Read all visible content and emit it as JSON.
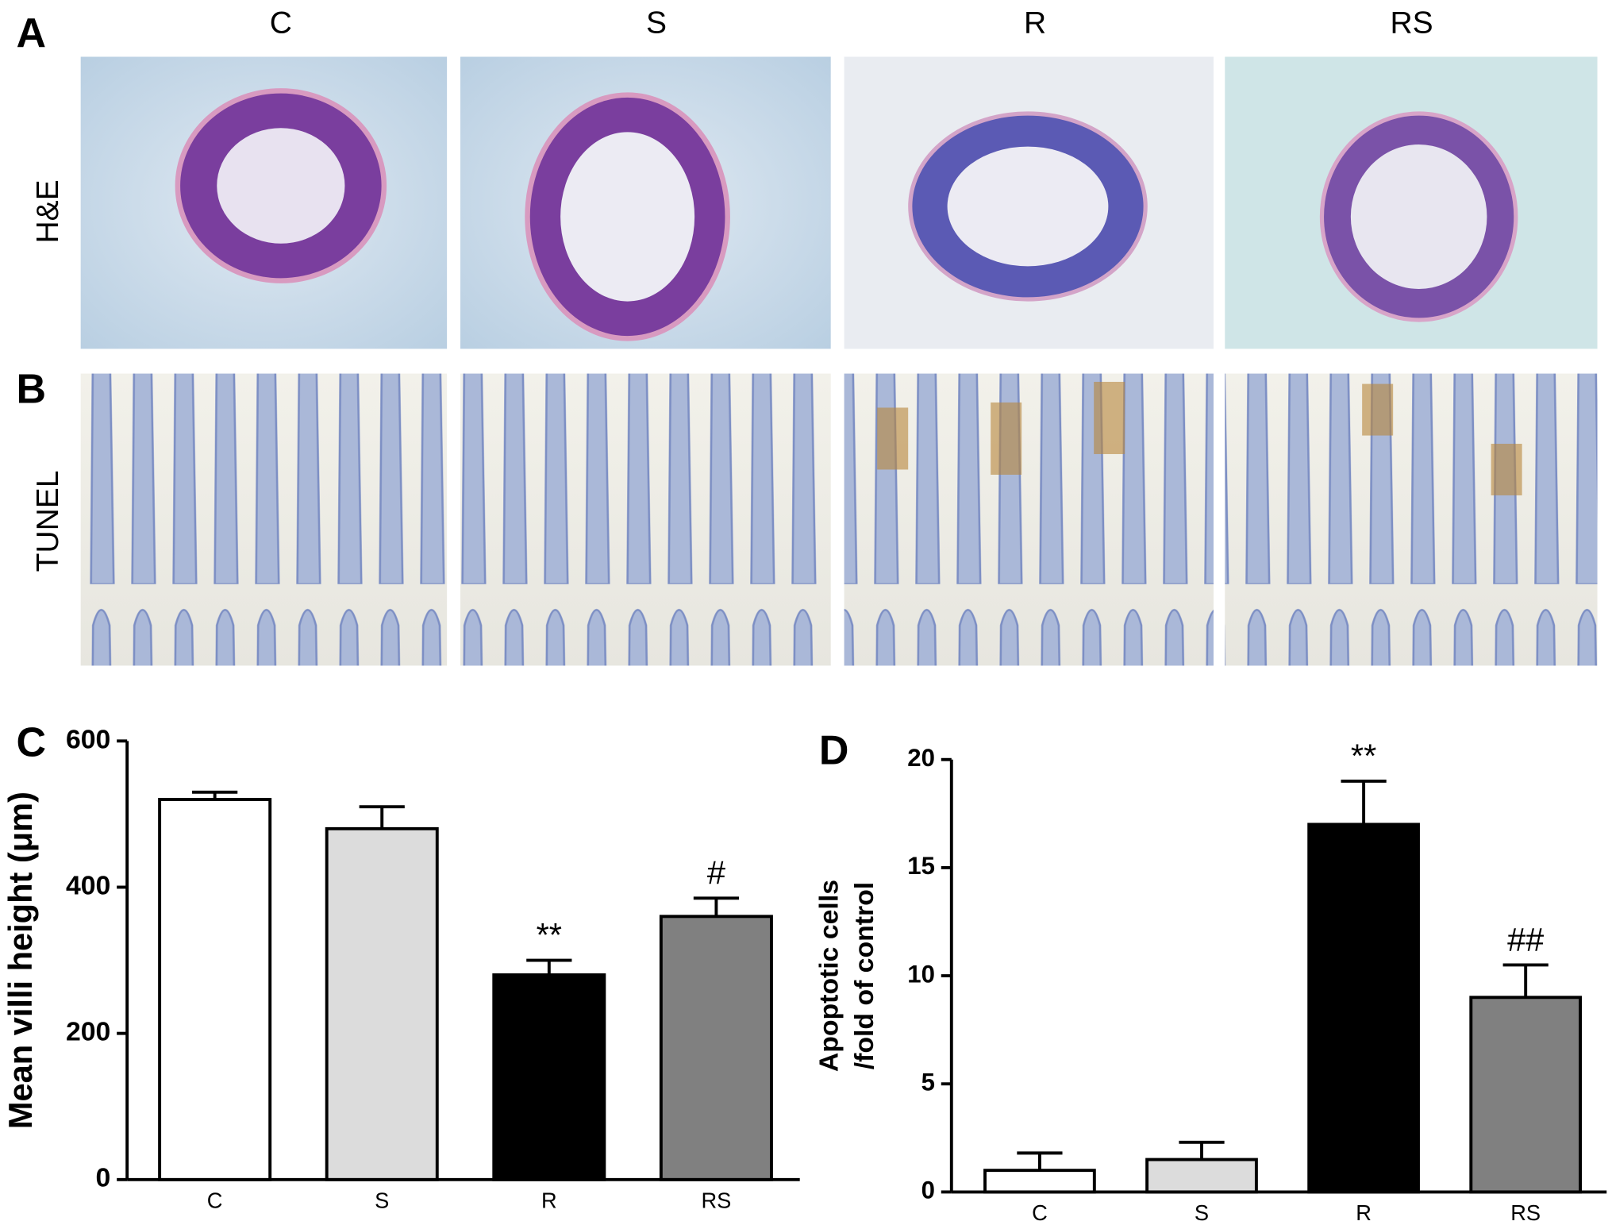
{
  "panels": {
    "letters": [
      "A",
      "B",
      "C",
      "D"
    ],
    "columns": [
      "C",
      "S",
      "R",
      "RS"
    ],
    "rows": [
      "H&E",
      "TUNEL"
    ]
  },
  "chart_data": [
    {
      "type": "bar",
      "ylabel": [
        "Mean villi height (μm)"
      ],
      "categories": [
        "C",
        "S",
        "R",
        "RS"
      ],
      "values": [
        520,
        480,
        280,
        360
      ],
      "errors": [
        10,
        30,
        20,
        25
      ],
      "annotations": [
        null,
        null,
        "**",
        "#"
      ],
      "colors": [
        "#ffffff",
        "#dcdcdc",
        "#000000",
        "#808080"
      ],
      "ylim": [
        0,
        600
      ],
      "yticks": [
        0,
        200,
        400,
        600
      ]
    },
    {
      "type": "bar",
      "ylabel": [
        "Apoptotic cells",
        "/fold of control"
      ],
      "categories": [
        "C",
        "S",
        "R",
        "RS"
      ],
      "values": [
        1,
        1.5,
        17,
        9
      ],
      "errors": [
        0.8,
        0.8,
        2,
        1.5
      ],
      "annotations": [
        null,
        null,
        "**",
        "##"
      ],
      "colors": [
        "#ffffff",
        "#dcdcdc",
        "#000000",
        "#808080"
      ],
      "ylim": [
        0,
        20
      ],
      "yticks": [
        0,
        5,
        10,
        15,
        20
      ]
    }
  ]
}
